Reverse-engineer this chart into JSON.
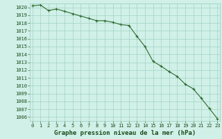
{
  "x": [
    0,
    1,
    2,
    3,
    4,
    5,
    6,
    7,
    8,
    9,
    10,
    11,
    12,
    13,
    14,
    15,
    16,
    17,
    18,
    19,
    20,
    21,
    22,
    23
  ],
  "y": [
    1020.2,
    1020.3,
    1019.6,
    1019.8,
    1019.5,
    1019.2,
    1018.9,
    1018.6,
    1018.3,
    1018.3,
    1018.1,
    1017.8,
    1017.7,
    1016.3,
    1015.0,
    1013.1,
    1012.5,
    1011.8,
    1011.2,
    1010.2,
    1009.6,
    1008.4,
    1007.1,
    1005.8
  ],
  "line_color": "#2d6a2d",
  "marker": "+",
  "background_color": "#d0f0e8",
  "grid_color": "#99ccbb",
  "xlabel": "Graphe pression niveau de la mer (hPa)",
  "xlabel_color": "#1a4a1a",
  "tick_color": "#1a4a1a",
  "ylim_min": 1005.5,
  "ylim_max": 1020.5,
  "xlim_min": -0.3,
  "xlim_max": 23.3,
  "yticks": [
    1006,
    1007,
    1008,
    1009,
    1010,
    1011,
    1012,
    1013,
    1014,
    1015,
    1016,
    1017,
    1018,
    1019,
    1020
  ],
  "xticks": [
    0,
    1,
    2,
    3,
    4,
    5,
    6,
    7,
    8,
    9,
    10,
    11,
    12,
    13,
    14,
    15,
    16,
    17,
    18,
    19,
    20,
    21,
    22,
    23
  ],
  "xlabel_fontsize": 6.5,
  "tick_fontsize": 5,
  "linewidth": 0.8,
  "markersize": 3.5,
  "markeredgewidth": 0.8
}
